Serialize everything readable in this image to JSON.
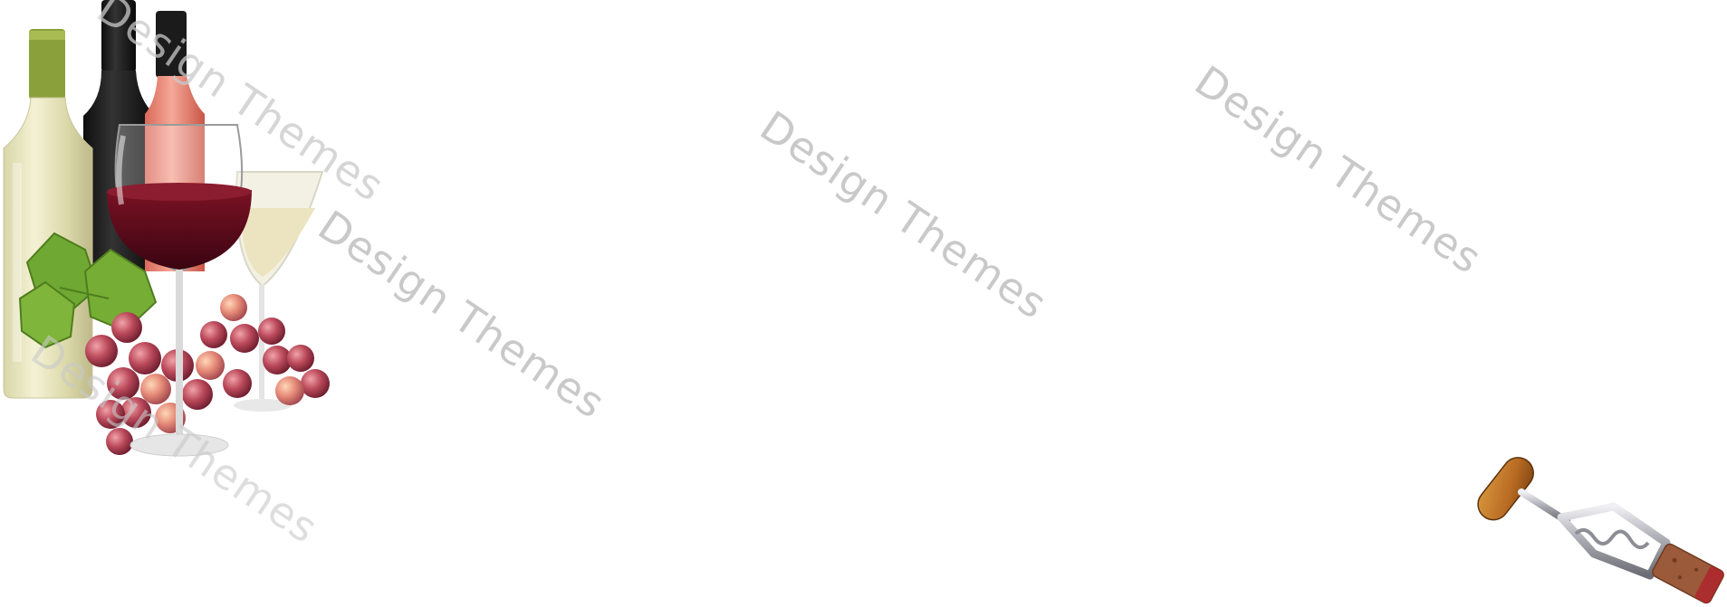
{
  "watermarks": [
    {
      "text": "Design Themes"
    },
    {
      "text": "Design Themes"
    },
    {
      "text": "Design Themes"
    },
    {
      "text": "Design Themes"
    },
    {
      "text": "Design Themes"
    }
  ],
  "images": {
    "wine": {
      "icon": "wine-bottles-glasses-grapes-icon"
    },
    "corkscrew": {
      "icon": "corkscrew-icon"
    }
  },
  "colors": {
    "background": "#ffffff",
    "watermark": "#c9c9c9",
    "red_wine": "#5a0f1c",
    "white_wine": "#e7e3bf",
    "rose_wine": "#e98a7a",
    "grape": "#b3404f",
    "leaf": "#6fa832",
    "wood": "#b86a22",
    "cork": "#9b5a3a",
    "metal": "#a8a8b0"
  }
}
